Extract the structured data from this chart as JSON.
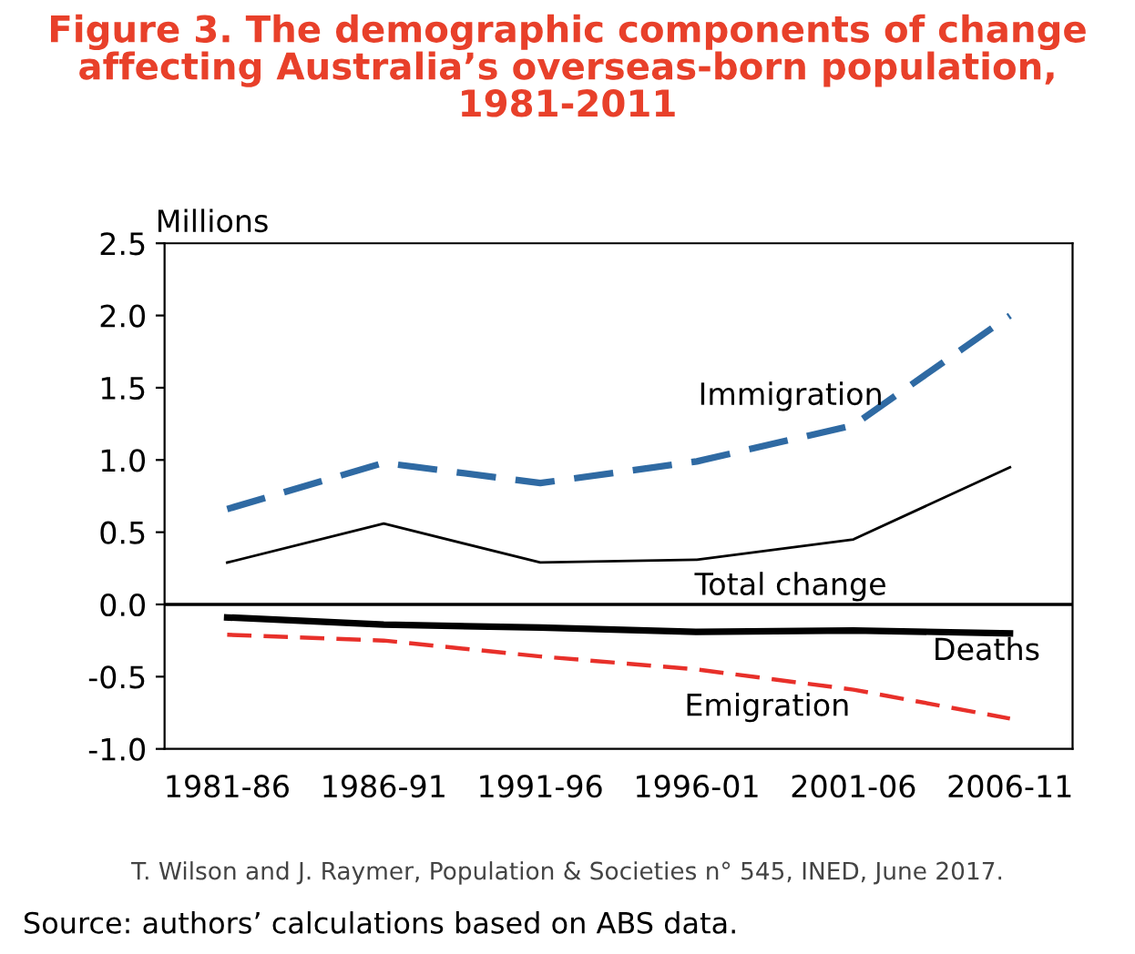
{
  "chart_data": {
    "type": "line",
    "title": "Figure 3. The demographic components of change\naffecting Australia’s overseas-born population,\n1981-2011",
    "ylabel": "Millions",
    "categories": [
      "1981-86",
      "1986-91",
      "1991-96",
      "1996-01",
      "2001-06",
      "2006-11"
    ],
    "series": [
      {
        "name": "Immigration",
        "color": "#2f6aa3",
        "line_style": "dashed",
        "values": [
          0.66,
          0.98,
          0.84,
          0.99,
          1.24,
          2.0
        ]
      },
      {
        "name": "Total change",
        "color": "#000000",
        "line_style": "solid",
        "values": [
          0.29,
          0.56,
          0.29,
          0.31,
          0.45,
          0.95
        ]
      },
      {
        "name": "Deaths",
        "color": "#000000",
        "line_style": "solid",
        "values": [
          -0.09,
          -0.14,
          -0.16,
          -0.19,
          -0.18,
          -0.2
        ]
      },
      {
        "name": "Emigration",
        "color": "#e8302a",
        "line_style": "dashed",
        "values": [
          -0.21,
          -0.25,
          -0.36,
          -0.45,
          -0.59,
          -0.79
        ]
      }
    ],
    "ylim": [
      -1.0,
      2.5
    ],
    "yticks": [
      {
        "value": -1.0,
        "label": "-1.0"
      },
      {
        "value": -0.5,
        "label": "-0.5"
      },
      {
        "value": 0.0,
        "label": "0.0"
      },
      {
        "value": 0.5,
        "label": "0.5"
      },
      {
        "value": 1.0,
        "label": "1.0"
      },
      {
        "value": 1.5,
        "label": "1.5"
      },
      {
        "value": 2.0,
        "label": "2.0"
      },
      {
        "value": 2.5,
        "label": "2.5"
      }
    ],
    "ref_lines": [
      {
        "axis": "y",
        "value": 0.0,
        "color": "#000000"
      }
    ],
    "grid": false,
    "legend": false,
    "marker": "none",
    "annotations": [
      "T. Wilson and J. Raymer, Population & Societies n° 545, INED, June 2017.",
      "Source: authors’ calculations based on ABS data."
    ]
  }
}
